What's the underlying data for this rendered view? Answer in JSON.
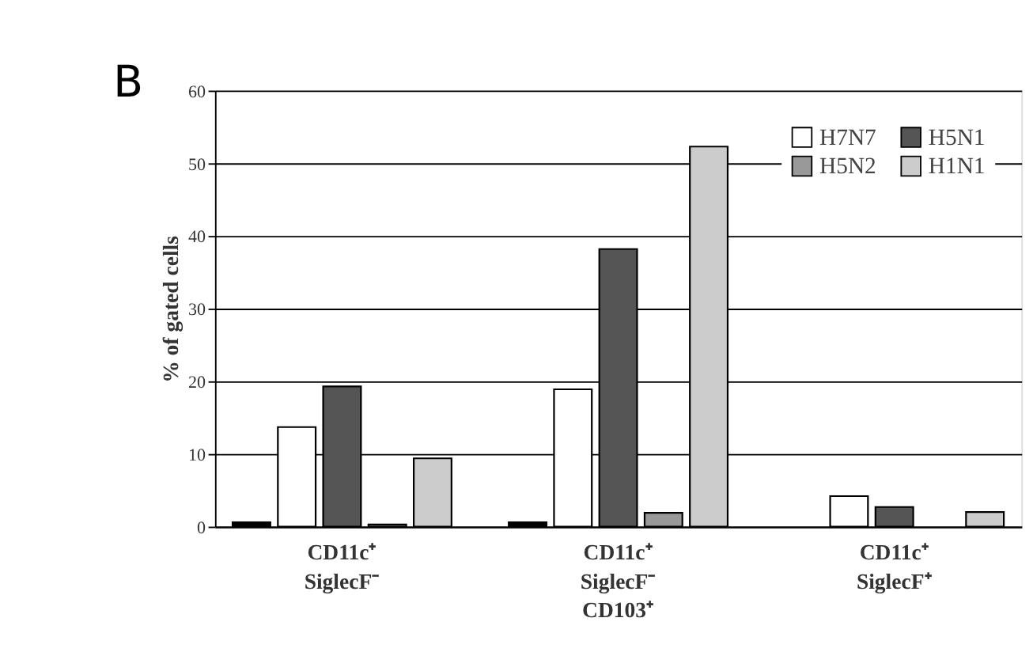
{
  "chart_data": {
    "type": "bar",
    "ylabel": "% of gated cells",
    "categories": [
      "CD11c⁺\nSiglecF⁻",
      "CD11c⁺\nSiglecF⁻\nCD103⁺",
      "CD11c⁺\nSiglecF⁺"
    ],
    "series": [
      {
        "color": "#000000",
        "values": [
          0.6,
          0.6,
          null
        ]
      },
      {
        "name": "H7N7",
        "color": "#ffffff",
        "values": [
          13.7,
          18.9,
          4.2
        ]
      },
      {
        "name": "H5N1",
        "color": "#555555",
        "values": [
          19.3,
          38.2,
          2.7
        ]
      },
      {
        "name": "H5N2",
        "color": "#999999",
        "values": [
          0.3,
          1.9,
          null
        ]
      },
      {
        "name": "H1N1",
        "color": "#cccccc",
        "values": [
          9.4,
          52.3,
          2.0
        ]
      }
    ],
    "ylim": [
      0,
      60
    ],
    "yticks": [
      0,
      10,
      20,
      30,
      40,
      50,
      60
    ],
    "grid": "y",
    "legend": "top right",
    "annotations": [
      "B"
    ]
  }
}
